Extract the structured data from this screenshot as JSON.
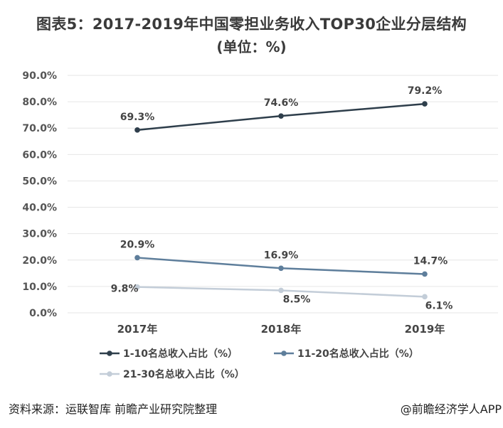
{
  "title": {
    "line1": "图表5：2017-2019年中国零担业务收入TOP30企业分层结构",
    "line2": "(单位：%)"
  },
  "chart_data": {
    "type": "line",
    "categories": [
      "2017年",
      "2018年",
      "2019年"
    ],
    "y_ticks": [
      "0.0%",
      "10.0%",
      "20.0%",
      "30.0%",
      "40.0%",
      "50.0%",
      "60.0%",
      "70.0%",
      "80.0%",
      "90.0%"
    ],
    "ylim": [
      0,
      90
    ],
    "grid": true,
    "legend_position": "bottom",
    "series": [
      {
        "name": "1-10名总收入占比（%）",
        "values": [
          69.3,
          74.6,
          79.2
        ],
        "labels": [
          "69.3%",
          "74.6%",
          "79.2%"
        ],
        "color": "#2e3e4b"
      },
      {
        "name": "11-20名总收入占比（%）",
        "values": [
          20.9,
          16.9,
          14.7
        ],
        "labels": [
          "20.9%",
          "16.9%",
          "14.7%"
        ],
        "color": "#5e7e9b"
      },
      {
        "name": "21-30名总收入占比（%）",
        "values": [
          9.8,
          8.5,
          6.1
        ],
        "labels": [
          "9.8%",
          "8.5%",
          "6.1%"
        ],
        "color": "#c3cdd8"
      }
    ]
  },
  "footer": {
    "source": "资料来源：运联智库 前瞻产业研究院整理",
    "credit": "@前瞻经济学人APP"
  }
}
